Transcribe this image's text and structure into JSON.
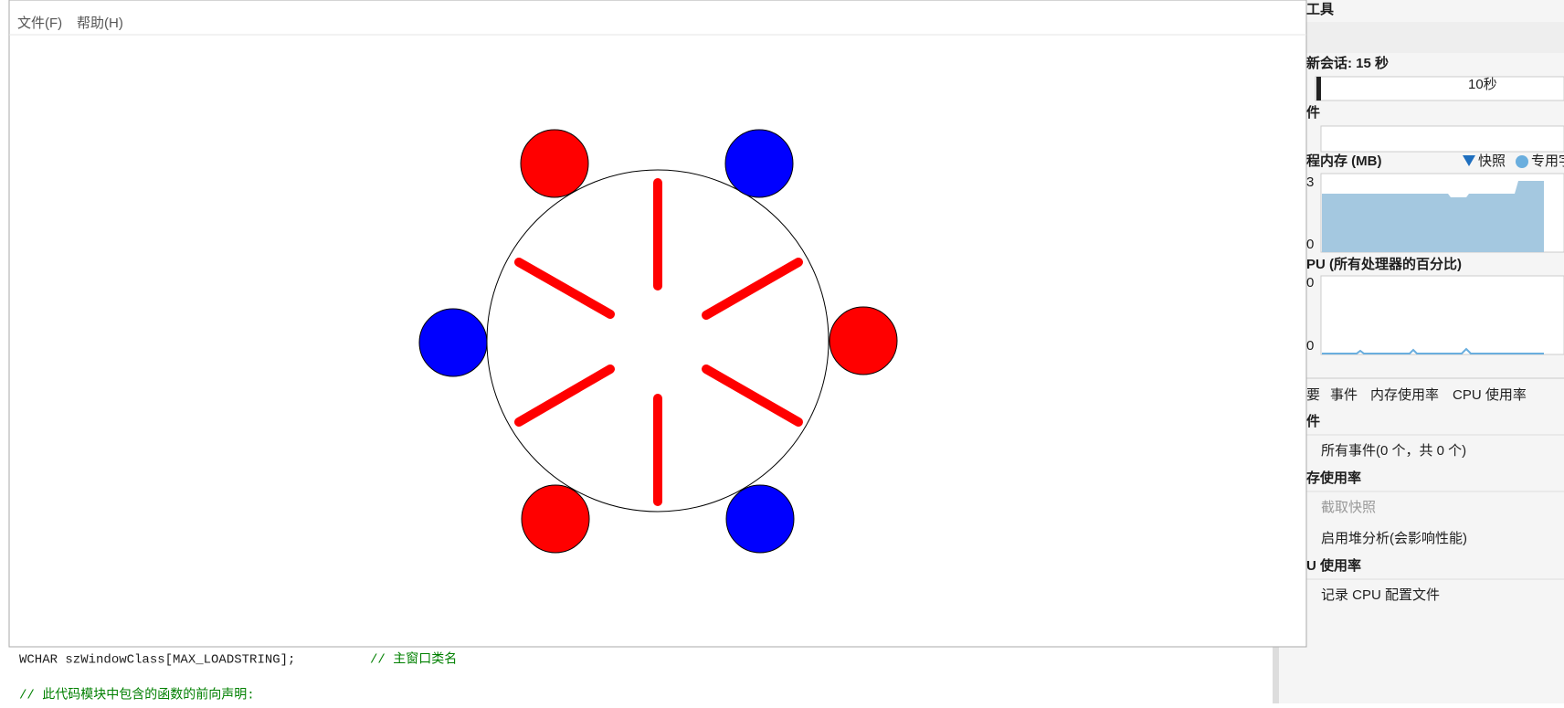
{
  "window": {
    "menu": [
      "文件(F)",
      "帮助(H)"
    ]
  },
  "code": {
    "line1": "WCHAR szWindowClass[MAX_LOADSTRING];",
    "comment1": "// 主窗口类名",
    "line2": "// 此代码模块中包含的函数的前向声明:"
  },
  "panel": {
    "title": "工具",
    "session": "新会话: 15 秒",
    "timeline": "10秒",
    "events_header": "件",
    "memory": {
      "title": "程内存 (MB)",
      "legend": [
        "快照",
        "专用字"
      ],
      "ymax": "3",
      "ymin": "0"
    },
    "cpu": {
      "title": "PU (所有处理器的百分比)",
      "ymax": "0",
      "ymin": "0"
    },
    "tabs": [
      "要",
      "事件",
      "内存使用率",
      "CPU 使用率"
    ],
    "sections": [
      {
        "title": "件",
        "items": [
          "所有事件(0 个，共 0 个)"
        ]
      },
      {
        "title": "存使用率",
        "items": [
          "截取快照",
          "启用堆分析(会影响性能)"
        ]
      },
      {
        "title": "U 使用率",
        "items": [
          "记录 CPU 配置文件"
        ]
      }
    ]
  }
}
